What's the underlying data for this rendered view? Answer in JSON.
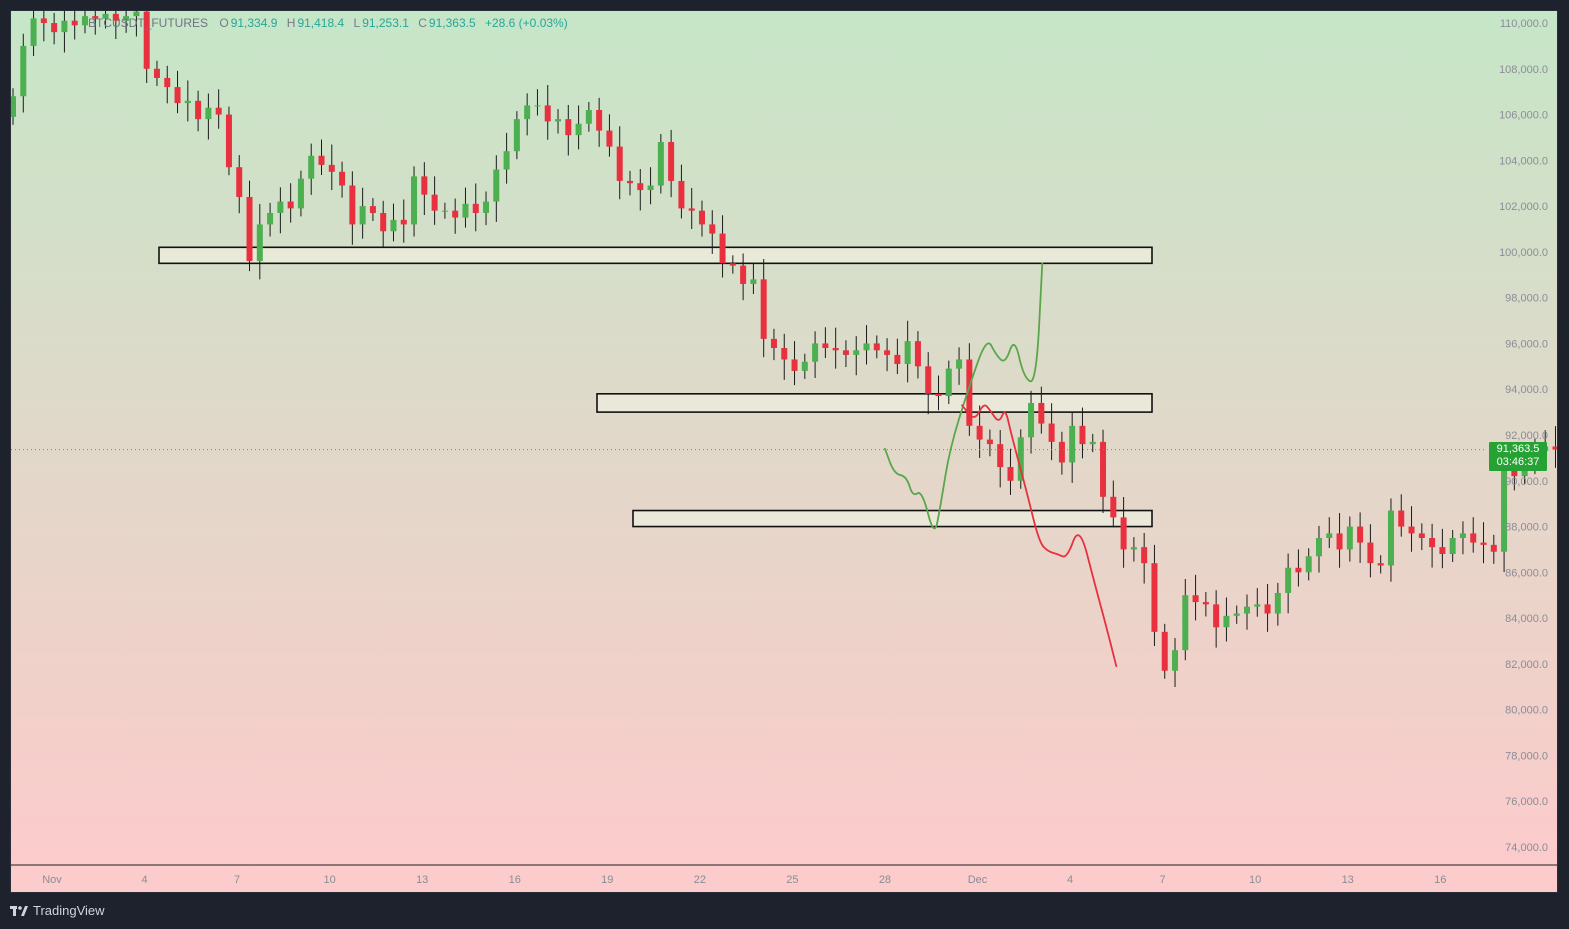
{
  "header": {
    "symbol": "BTCUSDT_FUTURES",
    "open_label": "O",
    "open": "91,334.9",
    "high_label": "H",
    "high": "91,418.4",
    "low_label": "L",
    "low": "91,253.1",
    "close_label": "C",
    "close": "91,363.5",
    "change": "+28.6 (+0.03%)"
  },
  "price_badge": {
    "price": "91,363.5",
    "countdown": "03:46:37",
    "color": "#26a234"
  },
  "footer": {
    "brand": "TradingView",
    "logo_icon": "tradingview-logo-icon"
  },
  "colors": {
    "bg_top": "#c6e6c8",
    "bg_bottom": "#fccbcb",
    "candle_up": "#4caf50",
    "candle_down": "#e8303f",
    "projection_bull": "#5aa64a",
    "projection_bear": "#e8303f",
    "zone_fill": "#ecebdc",
    "zone_stroke": "#111111",
    "axis_text": "#8a8d96"
  },
  "chart_data": {
    "type": "candlestick",
    "title": "BTCUSDT_FUTURES",
    "timeframe": "8h",
    "ylim": [
      73000,
      110600
    ],
    "y_ticks": [
      74000,
      76000,
      78000,
      80000,
      82000,
      84000,
      86000,
      88000,
      90000,
      92000,
      94000,
      96000,
      98000,
      100000,
      102000,
      104000,
      106000,
      108000,
      110000
    ],
    "y_tick_labels": [
      "74,000.0",
      "76,000.0",
      "78,000.0",
      "80,000.0",
      "82,000.0",
      "84,000.0",
      "86,000.0",
      "88,000.0",
      "90,000.0",
      "92,000.0",
      "94,000.0",
      "96,000.0",
      "98,000.0",
      "100,000.0",
      "102,000.0",
      "104,000.0",
      "106,000.0",
      "108,000.0",
      "110,000.0"
    ],
    "x_ticks": [
      {
        "label": "Nov",
        "day": 0
      },
      {
        "label": "4",
        "day": 3
      },
      {
        "label": "7",
        "day": 6
      },
      {
        "label": "10",
        "day": 9
      },
      {
        "label": "13",
        "day": 12
      },
      {
        "label": "16",
        "day": 15
      },
      {
        "label": "19",
        "day": 18
      },
      {
        "label": "22",
        "day": 21
      },
      {
        "label": "25",
        "day": 24
      },
      {
        "label": "28",
        "day": 27
      },
      {
        "label": "Dec",
        "day": 30
      },
      {
        "label": "4",
        "day": 33
      },
      {
        "label": "7",
        "day": 36
      },
      {
        "label": "10",
        "day": 39
      },
      {
        "label": "13",
        "day": 42
      },
      {
        "label": "16",
        "day": 45
      }
    ],
    "last_price": 91363.5,
    "candles_close": [
      106800,
      109000,
      110200,
      110000,
      109600,
      110100,
      109900,
      110300,
      110200,
      110400,
      110100,
      110300,
      110500,
      108000,
      107600,
      107200,
      106500,
      106600,
      105800,
      106300,
      106000,
      103700,
      102400,
      99600,
      101200,
      101700,
      102200,
      101900,
      103200,
      104200,
      103800,
      103500,
      102900,
      101200,
      102000,
      101700,
      100900,
      101400,
      101200,
      103300,
      102500,
      101800,
      101800,
      101500,
      102100,
      101700,
      102200,
      103600,
      104400,
      105800,
      106400,
      106400,
      105700,
      105800,
      105100,
      105600,
      106200,
      105300,
      104600,
      103100,
      103000,
      102700,
      102900,
      104800,
      103100,
      101900,
      101800,
      101200,
      100800,
      99500,
      99400,
      98600,
      98800,
      96200,
      95800,
      95300,
      94800,
      95200,
      96000,
      95800,
      95700,
      95500,
      95700,
      96000,
      95700,
      95500,
      95100,
      96100,
      95000,
      93800,
      93700,
      94900,
      95300,
      92400,
      91800,
      91600,
      90600,
      90000,
      91900,
      93400,
      92500,
      91700,
      90800,
      92400,
      91600,
      91700,
      89300,
      88400,
      87000,
      87100,
      86400,
      83400,
      81700,
      82600,
      85000,
      84700,
      84600,
      83600,
      84100,
      84200,
      84500,
      84600,
      84200,
      85100,
      86200,
      86000,
      86700,
      87500,
      87700,
      87000,
      88000,
      87300,
      86400,
      86300,
      88700,
      88000,
      87700,
      87500,
      87100,
      86800,
      87500,
      87700,
      87300,
      87200,
      86900,
      90700,
      90200,
      91000,
      91300,
      91500,
      91363
    ],
    "zones": [
      {
        "name": "resistance-100k",
        "low": 99500,
        "high": 100200
      },
      {
        "name": "zone-94k",
        "low": 93000,
        "high": 93800
      },
      {
        "name": "support-88k",
        "low": 88000,
        "high": 88700
      }
    ],
    "projections": [
      {
        "name": "bullish-scenario",
        "color": "#5aa64a",
        "points": [
          [
            27.0,
            91400
          ],
          [
            27.3,
            90300
          ],
          [
            27.7,
            90200
          ],
          [
            27.9,
            89300
          ],
          [
            28.2,
            89600
          ],
          [
            28.6,
            87500
          ],
          [
            28.8,
            88900
          ],
          [
            29.1,
            91400
          ],
          [
            29.7,
            94000
          ],
          [
            30.3,
            96300
          ],
          [
            30.6,
            95500
          ],
          [
            30.9,
            95100
          ],
          [
            31.2,
            96300
          ],
          [
            31.5,
            94500
          ],
          [
            31.9,
            94200
          ],
          [
            32.1,
            99500
          ]
        ]
      },
      {
        "name": "bearish-scenario",
        "color": "#e8303f",
        "points": [
          [
            29.5,
            93300
          ],
          [
            29.9,
            92600
          ],
          [
            30.2,
            93400
          ],
          [
            30.4,
            93100
          ],
          [
            30.7,
            92500
          ],
          [
            30.9,
            93200
          ],
          [
            31.1,
            92000
          ],
          [
            31.6,
            89500
          ],
          [
            32.0,
            87300
          ],
          [
            32.3,
            86900
          ],
          [
            32.6,
            86800
          ],
          [
            32.9,
            86600
          ],
          [
            33.3,
            88100
          ],
          [
            33.8,
            85500
          ],
          [
            34.2,
            83500
          ],
          [
            34.5,
            81900
          ]
        ]
      }
    ]
  }
}
